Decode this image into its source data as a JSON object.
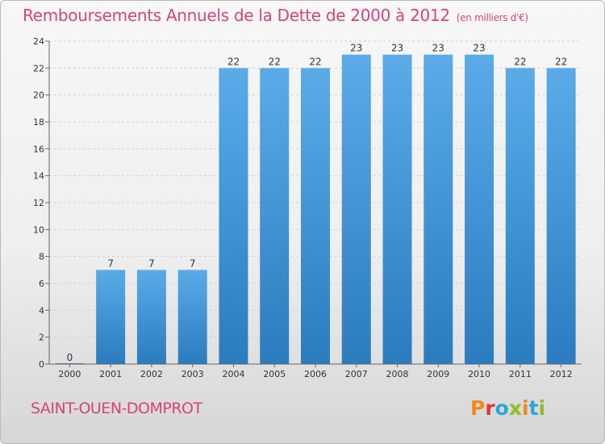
{
  "header": {
    "title": "Remboursements Annuels de la Dette de 2000 à 2012",
    "unit": "(en milliers d'€)"
  },
  "footer": {
    "city": "SAINT-OUEN-DOMPROT",
    "logo_letters": [
      "P",
      "r",
      "o",
      "x",
      "i",
      "t",
      "i"
    ],
    "logo_colors": [
      "#f08a1c",
      "#e5333b",
      "#29a6dd",
      "#8cbf26",
      "#f08a1c",
      "#29a6dd",
      "#8cbf26"
    ]
  },
  "colors": {
    "accent": "#d4447a",
    "bar_top": "#5aabe8",
    "bar_bottom": "#2a7cbf",
    "grid": "#d0d0d0"
  },
  "chart_data": {
    "type": "bar",
    "categories": [
      "2000",
      "2001",
      "2002",
      "2003",
      "2004",
      "2005",
      "2006",
      "2007",
      "2008",
      "2009",
      "2010",
      "2011",
      "2012"
    ],
    "values": [
      0,
      7,
      7,
      7,
      22,
      22,
      22,
      23,
      23,
      23,
      23,
      22,
      22
    ],
    "data_labels": [
      "0",
      "7",
      "7",
      "7",
      "22",
      "22",
      "22",
      "23",
      "23",
      "23",
      "23",
      "22",
      "22"
    ],
    "ylim": [
      0,
      24
    ],
    "yticks": [
      0,
      2,
      4,
      6,
      8,
      10,
      12,
      14,
      16,
      18,
      20,
      22,
      24
    ],
    "grid": "horizontal dashed"
  }
}
